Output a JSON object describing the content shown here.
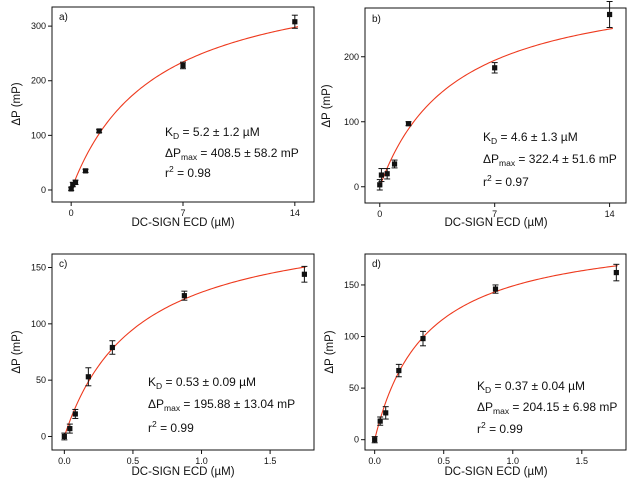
{
  "figure": {
    "colors": {
      "fit_curve": "#ee3a1e",
      "axis": "#111111",
      "marker": "#111111"
    }
  },
  "chart_data": [
    {
      "type": "scatter",
      "panel": "a)",
      "xlabel": "DC-SIGN ECD (µM)",
      "ylabel": "ΔP (mP)",
      "xlim": [
        -1.2,
        15.2
      ],
      "ylim": [
        -22,
        335
      ],
      "xticks": [
        0,
        7,
        14
      ],
      "xtick_labels": [
        "0",
        "7",
        "14"
      ],
      "yticks": [
        0,
        100,
        200,
        300
      ],
      "ytick_labels": [
        "0",
        "100",
        "200",
        "300"
      ],
      "series": [
        {
          "x": [
            0.0,
            0.1,
            0.27,
            0.9,
            1.75,
            7.0,
            14.0
          ],
          "y": [
            2,
            10,
            14,
            35,
            108,
            228,
            308
          ],
          "yerr": [
            3,
            4,
            4,
            3,
            3,
            6,
            12
          ]
        }
      ],
      "fit": {
        "model": "one-site binding",
        "Kd": 5.2,
        "Pmax": 408.5,
        "x_start": 0,
        "x_end": 14.2
      },
      "annotations": {
        "kd": {
          "main": "K",
          "sub": "D",
          "rest": " = 5.2 ± 1.2 µM"
        },
        "pmax": {
          "main": "ΔP",
          "sub": "max",
          "rest": " = 408.5 ± 58.2 mP"
        },
        "r2": {
          "main": "r",
          "sup": "2",
          "rest": " = 0.98"
        }
      }
    },
    {
      "type": "scatter",
      "panel": "b)",
      "xlabel": "DC-SIGN ECD (µM)",
      "ylabel": "ΔP (mP)",
      "xlim": [
        -0.9,
        15.0
      ],
      "ylim": [
        -25,
        275
      ],
      "xticks": [
        0,
        7,
        14
      ],
      "xtick_labels": [
        "0",
        "7",
        "14"
      ],
      "yticks": [
        0,
        100,
        200
      ],
      "ytick_labels": [
        "0",
        "100",
        "200"
      ],
      "series": [
        {
          "x": [
            0.0,
            0.1,
            0.45,
            0.9,
            1.75,
            7.0,
            14.0
          ],
          "y": [
            3,
            18,
            20,
            35,
            97,
            183,
            265
          ],
          "yerr": [
            8,
            10,
            8,
            6,
            3,
            8,
            20
          ]
        }
      ],
      "fit": {
        "model": "one-site binding",
        "Kd": 4.6,
        "Pmax": 322.4,
        "x_start": 0,
        "x_end": 14.2
      },
      "annotations": {
        "kd": {
          "main": "K",
          "sub": "D",
          "rest": " = 4.6 ± 1.3 µM"
        },
        "pmax": {
          "main": "ΔP",
          "sub": "max",
          "rest": " = 322.4 ± 51.6 mP"
        },
        "r2": {
          "main": "r",
          "sup": "2",
          "rest": " = 0.97"
        }
      }
    },
    {
      "type": "scatter",
      "panel": "c)",
      "xlabel": "DC-SIGN ECD (µM)",
      "ylabel": "ΔP (mP)",
      "xlim": [
        -0.09,
        1.82
      ],
      "ylim": [
        -12,
        162
      ],
      "xticks": [
        0,
        0.5,
        1.0,
        1.5
      ],
      "xtick_labels": [
        "0.0",
        "0.5",
        "1.0",
        "1.5"
      ],
      "yticks": [
        0,
        50,
        100,
        150
      ],
      "ytick_labels": [
        "0",
        "50",
        "100",
        "150"
      ],
      "series": [
        {
          "x": [
            0.0,
            0.04,
            0.08,
            0.175,
            0.35,
            0.875,
            1.75
          ],
          "y": [
            0,
            7,
            20,
            53,
            79,
            125,
            144
          ],
          "yerr": [
            3,
            4,
            4,
            8,
            6,
            4,
            7
          ]
        }
      ],
      "fit": {
        "model": "one-site binding",
        "Kd": 0.53,
        "Pmax": 195.88,
        "x_start": 0,
        "x_end": 1.76
      },
      "annotations": {
        "kd": {
          "main": "K",
          "sub": "D",
          "rest": " = 0.53 ± 0.09 µM"
        },
        "pmax": {
          "main": "ΔP",
          "sub": "max",
          "rest": " = 195.88 ± 13.04 mP"
        },
        "r2": {
          "main": "r",
          "sup": "2",
          "rest": " = 0.99"
        }
      }
    },
    {
      "type": "scatter",
      "panel": "d)",
      "xlabel": "DC-SIGN ECD (µM)",
      "ylabel": "ΔP (mP)",
      "xlim": [
        -0.07,
        1.82
      ],
      "ylim": [
        -10,
        180
      ],
      "xticks": [
        0,
        0.5,
        1.0,
        1.5
      ],
      "xtick_labels": [
        "0.0",
        "0.5",
        "1.0",
        "1.5"
      ],
      "yticks": [
        0,
        50,
        100,
        150
      ],
      "ytick_labels": [
        "0",
        "50",
        "100",
        "150"
      ],
      "series": [
        {
          "x": [
            0.0,
            0.04,
            0.08,
            0.175,
            0.35,
            0.875,
            1.75
          ],
          "y": [
            0,
            18,
            26,
            67,
            98,
            146,
            162
          ],
          "yerr": [
            3,
            4,
            6,
            6,
            7,
            4,
            8
          ]
        }
      ],
      "fit": {
        "model": "one-site binding",
        "Kd": 0.37,
        "Pmax": 204.15,
        "x_start": 0,
        "x_end": 1.76
      },
      "annotations": {
        "kd": {
          "main": "K",
          "sub": "D",
          "rest": " = 0.37 ± 0.04 µM"
        },
        "pmax": {
          "main": "ΔP",
          "sub": "max",
          "rest": " = 204.15 ± 6.98 mP"
        },
        "r2": {
          "main": "r",
          "sup": "2",
          "rest": " = 0.99"
        }
      }
    }
  ]
}
